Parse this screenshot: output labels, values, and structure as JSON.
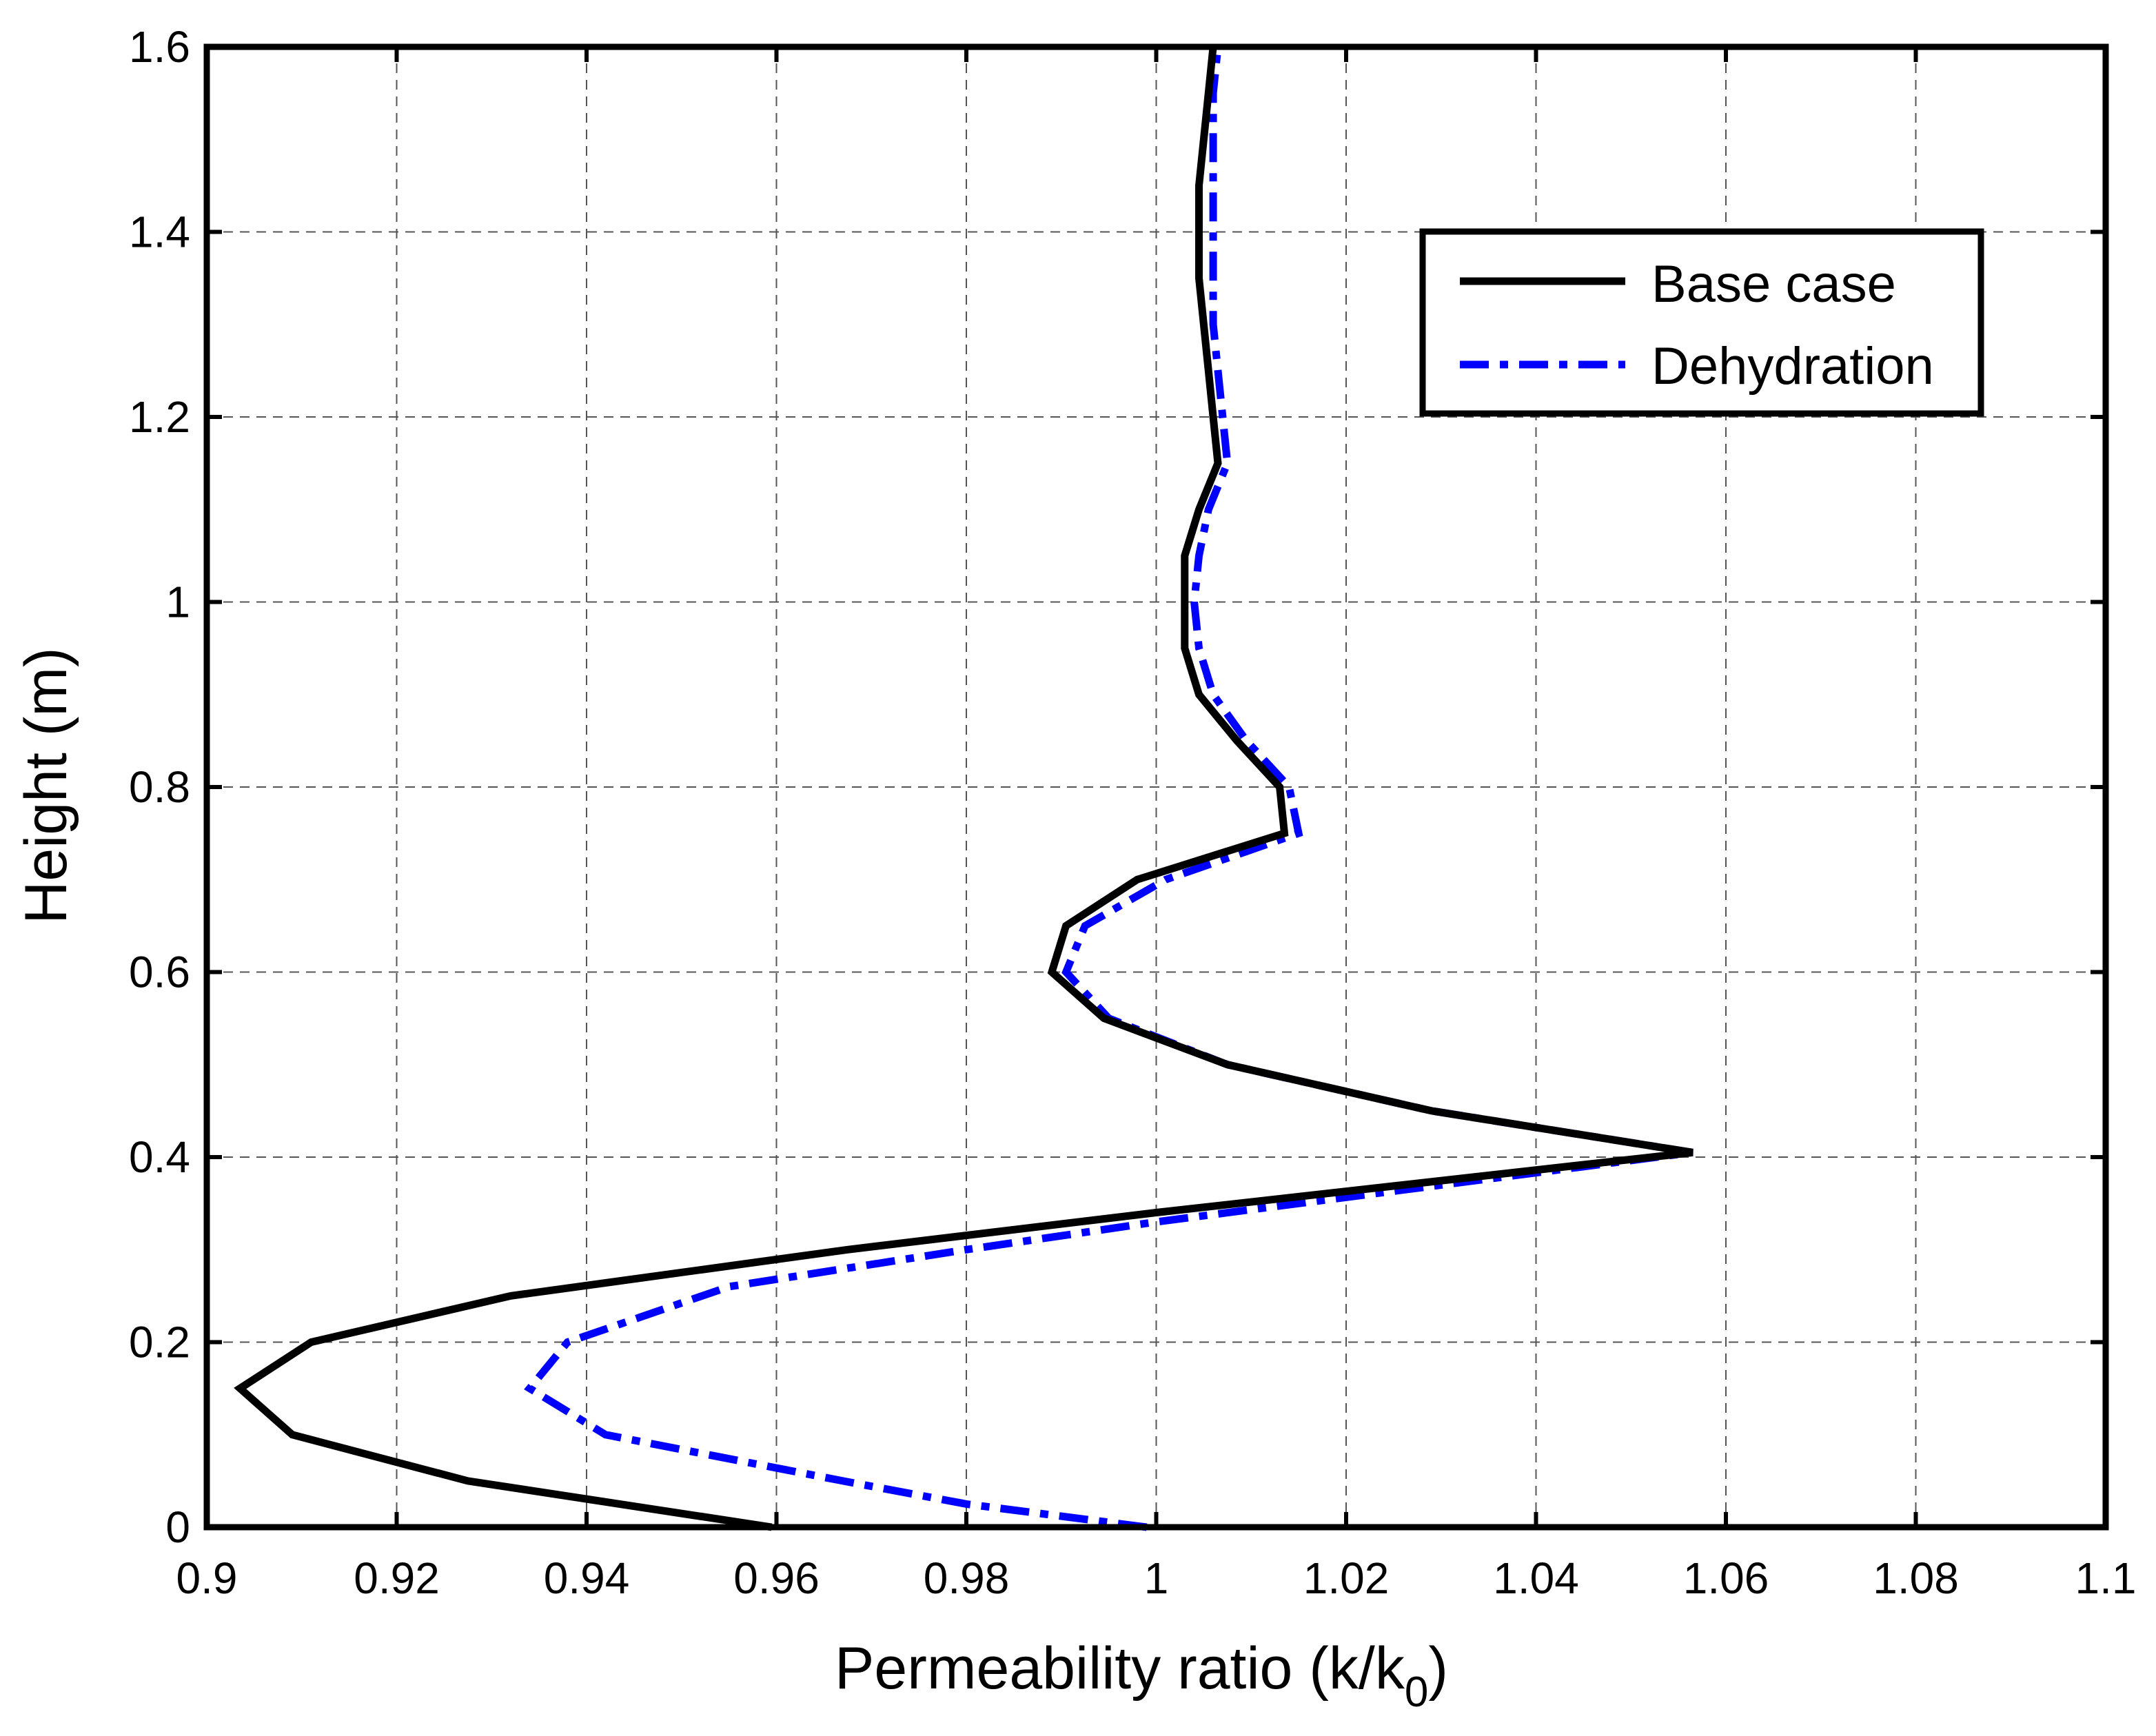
{
  "chart_data": {
    "type": "line",
    "title": "",
    "xlabel": "Permeability ratio (k/k",
    "xlabel_subscript": "0",
    "xlabel_suffix": ")",
    "ylabel": "Height (m)",
    "xlim": [
      0.9,
      1.1
    ],
    "ylim": [
      0,
      1.6
    ],
    "x_ticks": [
      0.9,
      0.92,
      0.94,
      0.96,
      0.98,
      1.0,
      1.02,
      1.04,
      1.06,
      1.08,
      1.1
    ],
    "x_tick_labels": [
      "0.9",
      "0.92",
      "0.94",
      "0.96",
      "0.98",
      "1",
      "1.02",
      "1.04",
      "1.06",
      "1.08",
      "1.1"
    ],
    "y_ticks": [
      0,
      0.2,
      0.4,
      0.6,
      0.8,
      1.0,
      1.2,
      1.4,
      1.6
    ],
    "y_tick_labels": [
      "0",
      "0.2",
      "0.4",
      "0.6",
      "0.8",
      "1",
      "1.2",
      "1.4",
      "1.6"
    ],
    "grid": true,
    "legend_position": "top-right",
    "series": [
      {
        "name": "Base case",
        "color": "#000000",
        "line_style": "solid",
        "points": [
          [
            0.9595,
            0.0
          ],
          [
            0.9275,
            0.05
          ],
          [
            0.909,
            0.1
          ],
          [
            0.9035,
            0.15
          ],
          [
            0.911,
            0.2
          ],
          [
            0.932,
            0.25
          ],
          [
            0.9675,
            0.3
          ],
          [
            1.0,
            0.34
          ],
          [
            1.0565,
            0.405
          ],
          [
            1.029,
            0.45
          ],
          [
            1.0075,
            0.5
          ],
          [
            0.9945,
            0.55
          ],
          [
            0.989,
            0.6
          ],
          [
            0.9905,
            0.65
          ],
          [
            0.998,
            0.7
          ],
          [
            1.0135,
            0.75
          ],
          [
            1.013,
            0.8
          ],
          [
            1.0085,
            0.85
          ],
          [
            1.0045,
            0.9
          ],
          [
            1.003,
            0.95
          ],
          [
            1.003,
            1.0
          ],
          [
            1.003,
            1.05
          ],
          [
            1.0045,
            1.1
          ],
          [
            1.0065,
            1.15
          ],
          [
            1.006,
            1.2
          ],
          [
            1.0055,
            1.25
          ],
          [
            1.005,
            1.3
          ],
          [
            1.0045,
            1.35
          ],
          [
            1.0045,
            1.4
          ],
          [
            1.0045,
            1.45
          ],
          [
            1.005,
            1.5
          ],
          [
            1.0055,
            1.55
          ],
          [
            1.006,
            1.6
          ]
        ]
      },
      {
        "name": "Dehydration",
        "color": "#0000ff",
        "line_style": "dash-dot",
        "points": [
          [
            0.999,
            0.0
          ],
          [
            0.98,
            0.025
          ],
          [
            0.967,
            0.05
          ],
          [
            0.942,
            0.1
          ],
          [
            0.934,
            0.15
          ],
          [
            0.938,
            0.2
          ],
          [
            0.955,
            0.26
          ],
          [
            0.98,
            0.3
          ],
          [
            1.0,
            0.33
          ],
          [
            1.0565,
            0.405
          ],
          [
            1.029,
            0.45
          ],
          [
            1.0075,
            0.5
          ],
          [
            0.995,
            0.55
          ],
          [
            0.9905,
            0.6
          ],
          [
            0.9925,
            0.65
          ],
          [
            1.001,
            0.7
          ],
          [
            1.015,
            0.75
          ],
          [
            1.014,
            0.8
          ],
          [
            1.0095,
            0.85
          ],
          [
            1.006,
            0.9
          ],
          [
            1.0045,
            0.95
          ],
          [
            1.004,
            1.0
          ],
          [
            1.0045,
            1.05
          ],
          [
            1.0055,
            1.1
          ],
          [
            1.0075,
            1.15
          ],
          [
            1.007,
            1.2
          ],
          [
            1.0065,
            1.25
          ],
          [
            1.006,
            1.3
          ],
          [
            1.006,
            1.35
          ],
          [
            1.006,
            1.4
          ],
          [
            1.006,
            1.45
          ],
          [
            1.006,
            1.5
          ],
          [
            1.006,
            1.55
          ],
          [
            1.0065,
            1.6
          ]
        ]
      }
    ]
  }
}
